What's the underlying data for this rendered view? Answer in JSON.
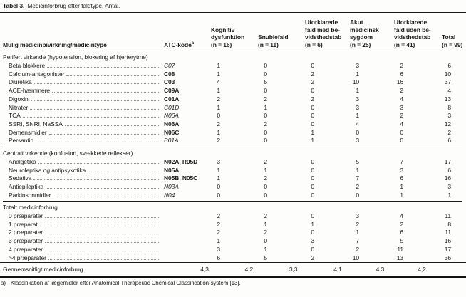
{
  "title": {
    "label": "Tabel 3.",
    "caption": "Medicinforbrug efter faldtype. Antal."
  },
  "table": {
    "row_header": "Mulig medicinbivirkning/medicintype",
    "atc_header": {
      "text": "ATC-kode",
      "sup": "a"
    },
    "value_columns": [
      {
        "id": "kognitiv-dysfunktion",
        "lines": [
          "Kognitiv",
          "dysfunktion",
          "(n = 16)"
        ]
      },
      {
        "id": "snublefald",
        "lines": [
          "Snublefald",
          "(n = 11)"
        ]
      },
      {
        "id": "uforklarede-fald-med-bevidsthedstab",
        "lines": [
          "Uforklarede",
          "fald med be-",
          "vidsthedstab",
          "(n = 6)"
        ]
      },
      {
        "id": "akut-medicinsk-sygdom",
        "lines": [
          "Akut",
          "medicinsk",
          "sygdom",
          "(n = 25)"
        ]
      },
      {
        "id": "uforklarede-fald-uden-bevidsthedstab",
        "lines": [
          "Uforklarede",
          "fald uden be-",
          "vidsthedstab",
          "(n = 41)"
        ]
      },
      {
        "id": "total",
        "lines": [
          "Total",
          "(n = 99)"
        ]
      }
    ],
    "sections": [
      {
        "header": "Perifert virkende (hypotension, blokering af hjerterytme)",
        "rows": [
          {
            "label": "Beta-blokkere",
            "atc": "C07",
            "atc_style": "italic",
            "values": [
              "1",
              "0",
              "0",
              "3",
              "2",
              "6"
            ]
          },
          {
            "label": "Calcium-antagonister",
            "atc": "C08",
            "atc_style": "bold",
            "values": [
              "1",
              "0",
              "2",
              "1",
              "6",
              "10"
            ]
          },
          {
            "label": "Diuretika",
            "atc": "C03",
            "atc_style": "bold",
            "values": [
              "4",
              "5",
              "2",
              "10",
              "16",
              "37"
            ]
          },
          {
            "label": "ACE-hæmmere",
            "atc": "C09A",
            "atc_style": "bold",
            "values": [
              "1",
              "0",
              "0",
              "1",
              "2",
              "4"
            ]
          },
          {
            "label": "Digoxin",
            "atc": "C01A",
            "atc_style": "bold",
            "values": [
              "2",
              "2",
              "2",
              "3",
              "4",
              "13"
            ]
          },
          {
            "label": "Nitrater",
            "atc": "C01D",
            "atc_style": "italic",
            "values": [
              "1",
              "1",
              "0",
              "3",
              "3",
              "8"
            ]
          },
          {
            "label": "TCA",
            "atc": "N06A",
            "atc_style": "italic",
            "values": [
              "0",
              "0",
              "0",
              "1",
              "2",
              "3"
            ]
          },
          {
            "label": "SSRI, SNRI, NaSSA",
            "atc": "N06A",
            "atc_style": "bold",
            "values": [
              "2",
              "2",
              "0",
              "4",
              "4",
              "12"
            ]
          },
          {
            "label": "Demensmidler",
            "atc": "N06C",
            "atc_style": "bold",
            "values": [
              "1",
              "0",
              "1",
              "0",
              "0",
              "2"
            ]
          },
          {
            "label": "Persantin",
            "atc": "B01A",
            "atc_style": "italic",
            "values": [
              "2",
              "0",
              "1",
              "3",
              "0",
              "6"
            ]
          }
        ]
      },
      {
        "header": "Centralt virkende (konfusion, svækkede reflekser)",
        "rows": [
          {
            "label": "Analgetika",
            "atc": "N02A, R05D",
            "atc_style": "bold",
            "values": [
              "3",
              "2",
              "0",
              "5",
              "7",
              "17"
            ]
          },
          {
            "label": "Neuroleptika og antipsykotika",
            "atc": "N05A",
            "atc_style": "bold",
            "values": [
              "1",
              "1",
              "0",
              "1",
              "3",
              "6"
            ]
          },
          {
            "label": "Sedativa",
            "atc": "N05B, N05C",
            "atc_style": "bold",
            "values": [
              "1",
              "2",
              "0",
              "7",
              "6",
              "16"
            ]
          },
          {
            "label": "Antiepileptika",
            "atc": "N03A",
            "atc_style": "italic",
            "values": [
              "0",
              "0",
              "0",
              "2",
              "1",
              "3"
            ]
          },
          {
            "label": "Parkinsonmidler",
            "atc": "N04",
            "atc_style": "italic",
            "values": [
              "0",
              "0",
              "0",
              "0",
              "1",
              "1"
            ]
          }
        ]
      },
      {
        "header": "Totalt medicinforbrug",
        "rows": [
          {
            "label": "0 præparater",
            "atc": "",
            "atc_style": "",
            "values": [
              "2",
              "2",
              "0",
              "3",
              "4",
              "11"
            ]
          },
          {
            "label": "1 præparat",
            "atc": "",
            "atc_style": "",
            "values": [
              "2",
              "1",
              "1",
              "2",
              "2",
              "8"
            ]
          },
          {
            "label": "2 præparater",
            "atc": "",
            "atc_style": "",
            "values": [
              "2",
              "2",
              "0",
              "1",
              "6",
              "11"
            ]
          },
          {
            "label": "3 præparater",
            "atc": "",
            "atc_style": "",
            "values": [
              "1",
              "0",
              "3",
              "7",
              "5",
              "16"
            ]
          },
          {
            "label": "4 præparater",
            "atc": "",
            "atc_style": "",
            "values": [
              "3",
              "1",
              "0",
              "2",
              "11",
              "17"
            ]
          },
          {
            "label": ">4 præparater",
            "atc": "",
            "atc_style": "",
            "values": [
              "6",
              "5",
              "2",
              "10",
              "13",
              "36"
            ]
          }
        ]
      }
    ],
    "summary_row": {
      "label": "Gennemsnitligt medicinforbrug",
      "values": [
        "4,3",
        "4,2",
        "3,3",
        "4,1",
        "4,3",
        "4,2"
      ]
    }
  },
  "footnote": {
    "marker": "a)",
    "text": "Klassifikation af lægemidler efter Anatomical Therapeutic Chemical Classification-system [13]."
  }
}
